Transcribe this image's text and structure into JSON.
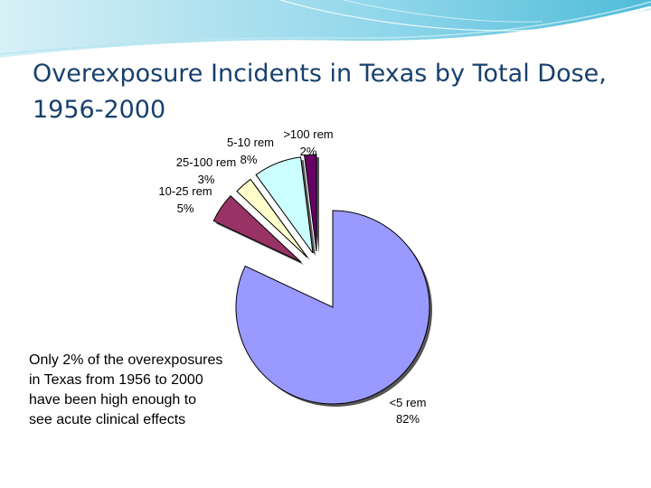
{
  "slide": {
    "title": "Overexposure Incidents in Texas by Total Dose, 1956-2000",
    "body_text": "Only 2% of the overexposures in Texas from 1956 to 2000 have been high enough to see acute clinical effects"
  },
  "chart_data": {
    "type": "pie",
    "slices": [
      {
        "label": "<5 rem",
        "percent_label": "82%",
        "value": 82,
        "color": "#9999ff"
      },
      {
        "label": "10-25 rem",
        "percent_label": "5%",
        "value": 5,
        "color": "#993366"
      },
      {
        "label": "25-100 rem",
        "percent_label": "3%",
        "value": 3,
        "color": "#ffffcc"
      },
      {
        "label": "5-10 rem",
        "percent_label": "8%",
        "value": 8,
        "color": "#ccffff"
      },
      {
        "label": ">100 rem",
        "percent_label": "2%",
        "value": 2,
        "color": "#660066"
      }
    ],
    "legend": "none",
    "exploded": true
  }
}
